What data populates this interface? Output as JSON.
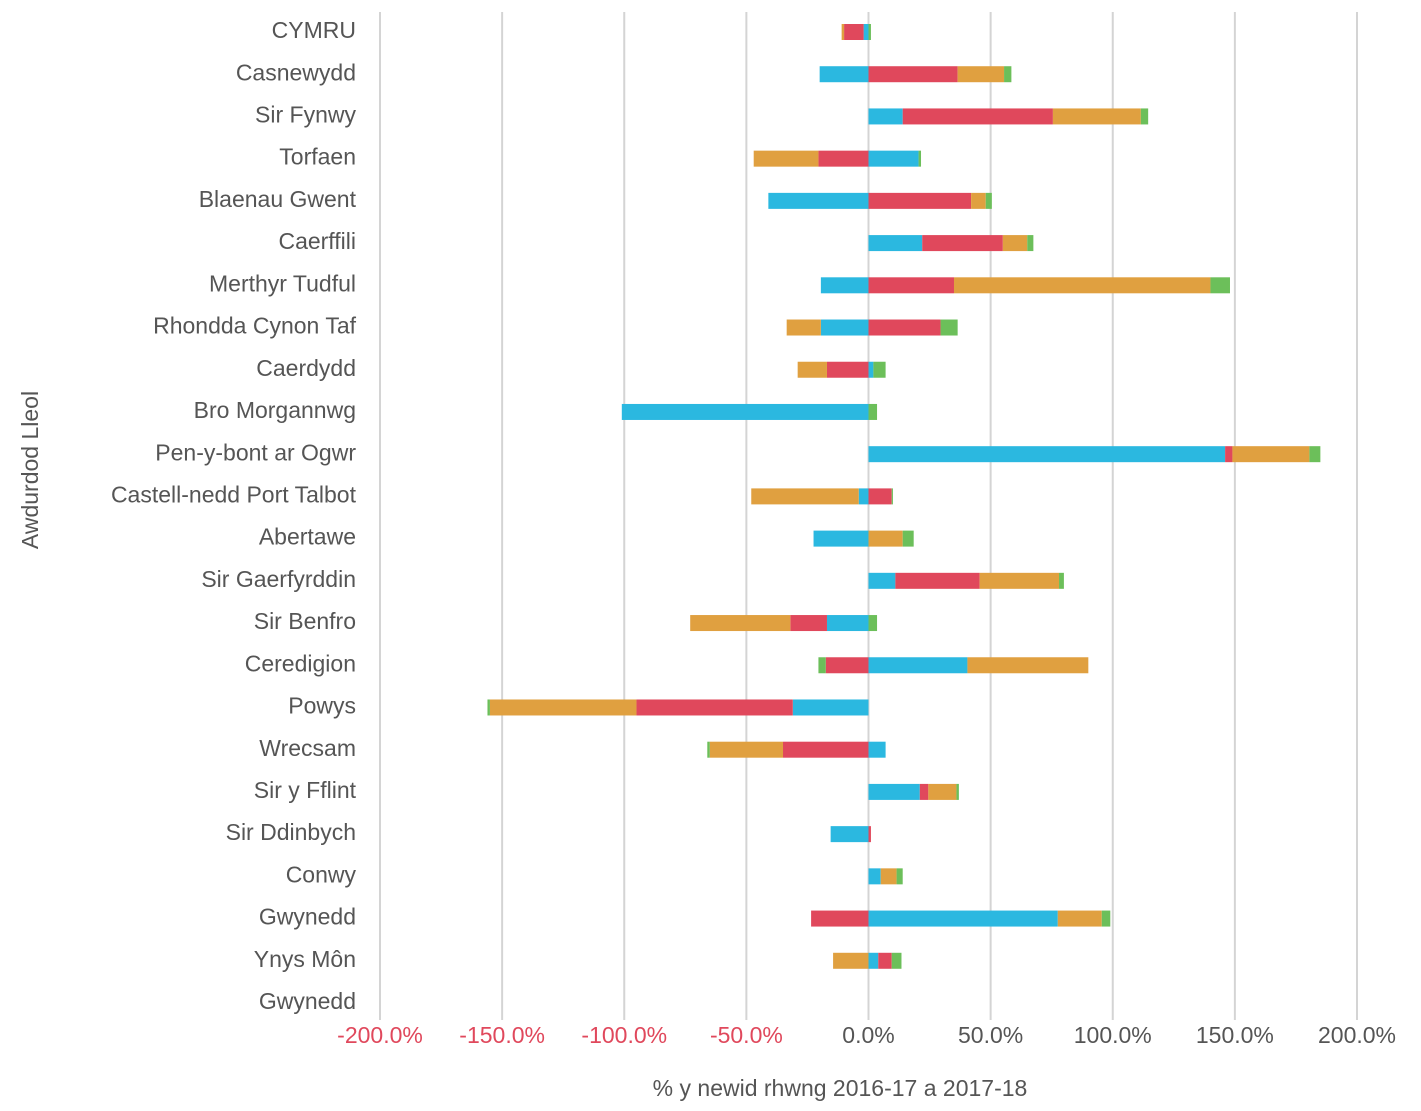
{
  "chart_data": {
    "type": "diverging-stacked-bar",
    "x_label": "% y newid rhwng 2016-17 a 2017-18",
    "y_label": "Awdurdod Lleol",
    "categories": [
      "CYMRU",
      "Casnewydd",
      "Sir Fynwy",
      "Torfaen",
      "Blaenau Gwent",
      "Caerffili",
      "Merthyr Tudful",
      "Rhondda Cynon Taf",
      "Caerdydd",
      "Bro Morgannwg",
      "Pen-y-bont ar Ogwr",
      "Castell-nedd Port Talbot",
      "Abertawe",
      "Sir Gaerfyrddin",
      "Sir Benfro",
      "Ceredigion",
      "Powys",
      "Wrecsam",
      "Sir y Fflint",
      "Sir Ddinbych",
      "Conwy",
      "Gwynedd",
      "Ynys Môn",
      "Gwynedd"
    ],
    "series": [
      {
        "color": "#2bb8e0",
        "values": [
          -2,
          -20,
          14,
          20.5,
          -41,
          22,
          -19.5,
          -19.5,
          2,
          -101,
          146,
          -4,
          -22.5,
          11,
          -17,
          40.5,
          -31,
          7,
          21,
          -15.5,
          5,
          77.5,
          4,
          null
        ]
      },
      {
        "color": "#e0485c",
        "values": [
          -8,
          36.5,
          61.5,
          -20.5,
          42,
          33,
          35,
          29.5,
          -17,
          0,
          3,
          9.5,
          0,
          34.5,
          -15,
          -17.5,
          -64,
          -35,
          3.5,
          1,
          0,
          -23.5,
          5.5,
          null
        ]
      },
      {
        "color": "#e0a040",
        "values": [
          -1,
          19,
          36,
          -26.5,
          6,
          10,
          105,
          -14,
          -12,
          0,
          31.5,
          -44,
          14,
          32.5,
          -41,
          49.5,
          -60,
          -30,
          11.5,
          0,
          6.5,
          18,
          -14.5,
          null
        ]
      },
      {
        "color": "#6cbf5a",
        "values": [
          1,
          3,
          3,
          1,
          2.5,
          2.5,
          8,
          7,
          5,
          3.5,
          4.5,
          0.5,
          4.5,
          2,
          3.5,
          -3,
          -1,
          -1,
          1,
          0,
          2.5,
          3.5,
          4,
          null
        ]
      }
    ],
    "xlim": [
      -200,
      200
    ],
    "xticks": [
      {
        "value": -200,
        "label": "-200.0%"
      },
      {
        "value": -150,
        "label": "-150.0%"
      },
      {
        "value": -100,
        "label": "-100.0%"
      },
      {
        "value": -50,
        "label": "-50.0%"
      },
      {
        "value": 0,
        "label": "0.0%"
      },
      {
        "value": 50,
        "label": "50.0%"
      },
      {
        "value": 100,
        "label": "100.0%"
      },
      {
        "value": 150,
        "label": "150.0%"
      },
      {
        "value": 200,
        "label": "200.0%"
      }
    ],
    "grid": true,
    "negative_tick_color": "#e0485c"
  }
}
